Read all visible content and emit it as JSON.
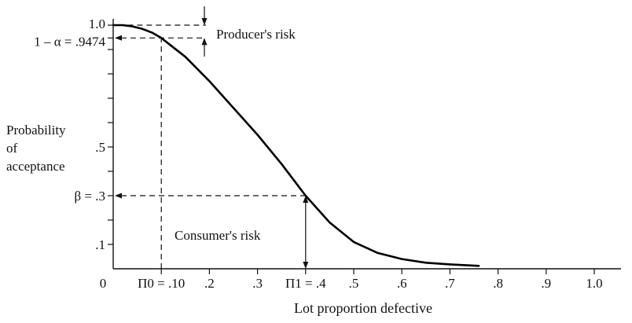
{
  "chart_data": {
    "type": "line",
    "title": "",
    "xlabel": "Lot proportion defective",
    "ylabel_lines": [
      "Probability",
      "of",
      "acceptance"
    ],
    "xlim": [
      0,
      1.0
    ],
    "ylim": [
      0,
      1.0
    ],
    "grid": false,
    "x_ticks": [
      {
        "value": 0,
        "label": "0"
      },
      {
        "value": 0.1,
        "label": "Π0 = .10"
      },
      {
        "value": 0.2,
        "label": ".2"
      },
      {
        "value": 0.3,
        "label": ".3"
      },
      {
        "value": 0.4,
        "label": "Π1 = .4"
      },
      {
        "value": 0.5,
        "label": ".5"
      },
      {
        "value": 0.6,
        "label": ".6"
      },
      {
        "value": 0.7,
        "label": ".7"
      },
      {
        "value": 0.8,
        "label": ".8"
      },
      {
        "value": 0.9,
        "label": ".9"
      },
      {
        "value": 1.0,
        "label": "1.0"
      }
    ],
    "y_ticks": [
      {
        "value": 0.1,
        "label": ".1"
      },
      {
        "value": 0.3,
        "label": "β  = .3"
      },
      {
        "value": 0.5,
        "label": ".5"
      },
      {
        "value": 0.9474,
        "label": "1 – α = .9474"
      },
      {
        "value": 1.0,
        "label": "1.0"
      }
    ],
    "y_minor_ticks": [
      0.2,
      0.4,
      0.6,
      0.7,
      0.8,
      0.9
    ],
    "series": [
      {
        "x": [
          0.0,
          0.02,
          0.04,
          0.06,
          0.08,
          0.1,
          0.15,
          0.2,
          0.25,
          0.3,
          0.35,
          0.4,
          0.45,
          0.5,
          0.55,
          0.6,
          0.65,
          0.7,
          0.76
        ],
        "y": [
          1.0,
          1.0,
          0.995,
          0.985,
          0.97,
          0.9474,
          0.87,
          0.77,
          0.66,
          0.55,
          0.43,
          0.3,
          0.19,
          0.11,
          0.065,
          0.04,
          0.025,
          0.018,
          0.012
        ]
      }
    ],
    "annotations": {
      "producers_risk": {
        "text": "Producer's risk",
        "from": 1.0,
        "to": 0.9474
      },
      "consumers_risk": {
        "text": "Consumer's risk",
        "from": 0.3,
        "to": 0
      }
    },
    "reference_lines": [
      {
        "type": "vertical",
        "x": 0.1,
        "y_to": 0.9474
      },
      {
        "type": "horizontal",
        "y": 0.9474,
        "x_to": 0.1
      },
      {
        "type": "horizontal",
        "y": 1.0,
        "x_to": 0.2
      },
      {
        "type": "horizontal",
        "y": 0.3,
        "x_to": 0.4
      }
    ]
  }
}
